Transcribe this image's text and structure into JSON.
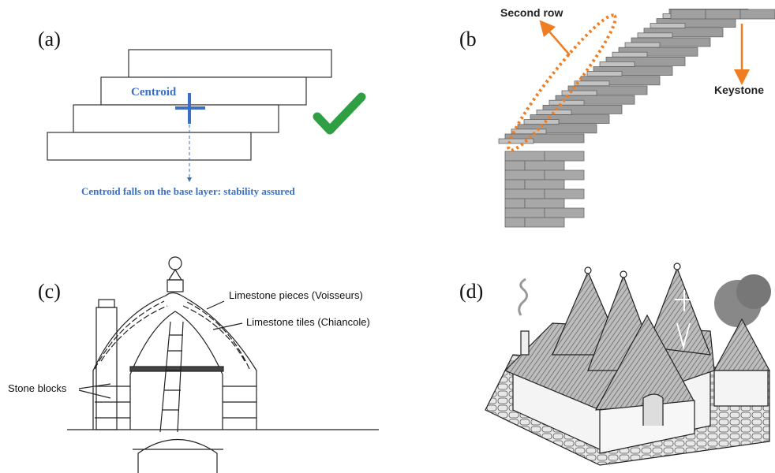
{
  "panels": [
    {
      "label": "(a)",
      "texts": [
        "Centroid",
        "Centroid falls on the base layer: stability assured"
      ]
    },
    {
      "label": "(b",
      "texts": [
        "Second row",
        "Keystone"
      ]
    },
    {
      "label": "(c)",
      "texts": [
        "Limestone pieces (Voisseurs)",
        "Limestone tiles (Chiancole)",
        "Stone blocks"
      ]
    },
    {
      "label": "(d)",
      "texts": []
    }
  ]
}
